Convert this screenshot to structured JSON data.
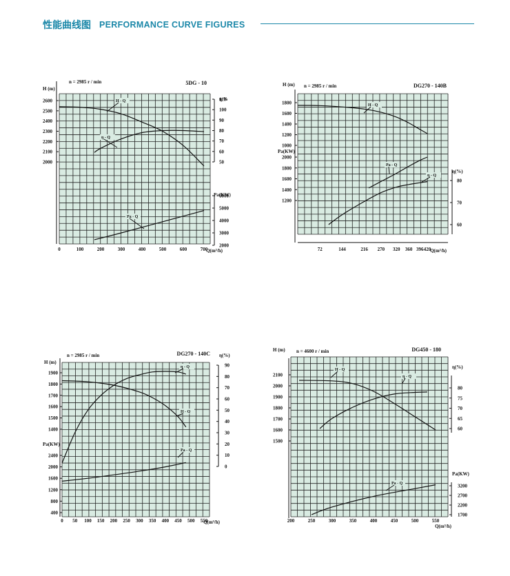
{
  "header": {
    "title_cn": "性能曲线图",
    "title_en": "PERFORMANCE CURVE FIGURES"
  },
  "chart_data": [
    {
      "type": "line",
      "title": "5DG - 10",
      "speed_label": "n = 2985 r / min",
      "xlabel": "Q(m³/h)",
      "x_ticks": [
        0,
        100,
        200,
        300,
        400,
        500,
        600,
        700
      ],
      "left_axes": [
        {
          "label": "H (m)",
          "ticks": [
            2600,
            2500,
            2400,
            2300,
            2200,
            2100,
            2000
          ]
        }
      ],
      "right_axes": [
        {
          "label": "η %",
          "ticks": [
            110,
            100,
            90,
            80,
            70,
            60,
            50
          ]
        },
        {
          "label": "Pa(KW)",
          "ticks": [
            6000,
            5000,
            4000,
            3000,
            2000
          ]
        }
      ],
      "series": [
        {
          "name": "H - Q",
          "x": [
            0,
            100,
            200,
            300,
            400,
            500,
            600,
            700
          ],
          "y": [
            2540,
            2535,
            2515,
            2470,
            2390,
            2300,
            2160,
            1960
          ]
        },
        {
          "name": "η - Q",
          "x": [
            170,
            200,
            300,
            400,
            500,
            600,
            700
          ],
          "y": [
            59,
            63,
            72,
            78,
            80,
            80,
            79
          ]
        },
        {
          "name": "Pa - Q",
          "x": [
            170,
            300,
            500,
            700
          ],
          "y": [
            2450,
            3000,
            3900,
            4800
          ]
        }
      ]
    },
    {
      "type": "line",
      "title": "DG270 - 140B",
      "speed_label": "n = 2985 r / min",
      "xlabel": "Q(m³/h)",
      "x_ticks": [
        72,
        144,
        216,
        270,
        320,
        360,
        396,
        420
      ],
      "left_axes": [
        {
          "label": "H (m)",
          "ticks": [
            1800,
            1600,
            1400,
            1200,
            1000
          ]
        },
        {
          "label": "Pa(KW)",
          "ticks": [
            2000,
            1800,
            1600,
            1400,
            1200
          ]
        }
      ],
      "right_axes": [
        {
          "label": "η(%)",
          "ticks": [
            80,
            70,
            60
          ]
        }
      ],
      "series": [
        {
          "name": "H - Q",
          "x": [
            0,
            72,
            144,
            216,
            270,
            320,
            360,
            396,
            420
          ],
          "y": [
            1750,
            1745,
            1720,
            1680,
            1620,
            1530,
            1420,
            1300,
            1220
          ]
        },
        {
          "name": "Pa - Q",
          "x": [
            230,
            270,
            320,
            360,
            396,
            420
          ],
          "y": [
            1430,
            1550,
            1700,
            1830,
            1940,
            2000
          ]
        },
        {
          "name": "η - Q",
          "x": [
            100,
            144,
            216,
            270,
            320,
            360,
            396,
            420
          ],
          "y": [
            60,
            64.5,
            70.5,
            74.5,
            77,
            78.2,
            79,
            79.5
          ]
        }
      ]
    },
    {
      "type": "line",
      "title": "DG270 - 140C",
      "speed_label": "n = 2985 r / min",
      "xlabel": "Q(m³/h)",
      "x_ticks": [
        0,
        50,
        100,
        150,
        200,
        250,
        300,
        350,
        400,
        450,
        500,
        550
      ],
      "left_axes": [
        {
          "label": "H (m)",
          "ticks": [
            1900,
            1800,
            1700,
            1600,
            1500,
            1400
          ]
        },
        {
          "label": "Pa(KW)",
          "ticks": [
            2400,
            2000,
            1600,
            1200,
            800,
            400
          ]
        }
      ],
      "right_axes": [
        {
          "label": "η(%)",
          "ticks": [
            90,
            80,
            70,
            60,
            50,
            40,
            30,
            20,
            10,
            0
          ]
        }
      ],
      "series": [
        {
          "name": "η - Q",
          "x": [
            0,
            50,
            100,
            150,
            200,
            250,
            300,
            350,
            400,
            450,
            480
          ],
          "y": [
            3,
            30,
            50,
            63,
            72,
            78,
            81.5,
            84,
            84.5,
            84,
            82
          ]
        },
        {
          "name": "H - Q",
          "x": [
            0,
            100,
            200,
            300,
            350,
            400,
            450,
            480
          ],
          "y": [
            1830,
            1820,
            1790,
            1730,
            1680,
            1610,
            1510,
            1420
          ]
        },
        {
          "name": "Pa - Q",
          "x": [
            0,
            100,
            200,
            300,
            400,
            480
          ],
          "y": [
            1500,
            1600,
            1720,
            1850,
            2000,
            2150
          ]
        }
      ]
    },
    {
      "type": "line",
      "title": "DG450 - 180",
      "speed_label": "n = 4600 r / min",
      "xlabel": "Q(m³/h)",
      "x_ticks": [
        200,
        250,
        300,
        350,
        400,
        450,
        500,
        550
      ],
      "left_axes": [
        {
          "label": "H (m)",
          "ticks": [
            2100,
            2000,
            1900,
            1800,
            1700,
            1600,
            1500
          ]
        }
      ],
      "right_axes": [
        {
          "label": "η(%)",
          "ticks": [
            80,
            75,
            70,
            65,
            60
          ]
        },
        {
          "label": "Pa(KW)",
          "ticks": [
            3200,
            2700,
            2200,
            1700
          ]
        }
      ],
      "series": [
        {
          "name": "H - Q",
          "x": [
            220,
            300,
            350,
            400,
            450,
            500,
            550
          ],
          "y": [
            2050,
            2045,
            2020,
            1950,
            1840,
            1720,
            1600
          ]
        },
        {
          "name": "η - Q",
          "x": [
            270,
            300,
            350,
            400,
            450,
            500,
            530
          ],
          "y": [
            60,
            65,
            70.5,
            74.5,
            77,
            77.8,
            78
          ]
        },
        {
          "name": "Pa - Q",
          "x": [
            250,
            300,
            400,
            500,
            550
          ],
          "y": [
            1700,
            2100,
            2650,
            3050,
            3250
          ]
        }
      ]
    }
  ]
}
